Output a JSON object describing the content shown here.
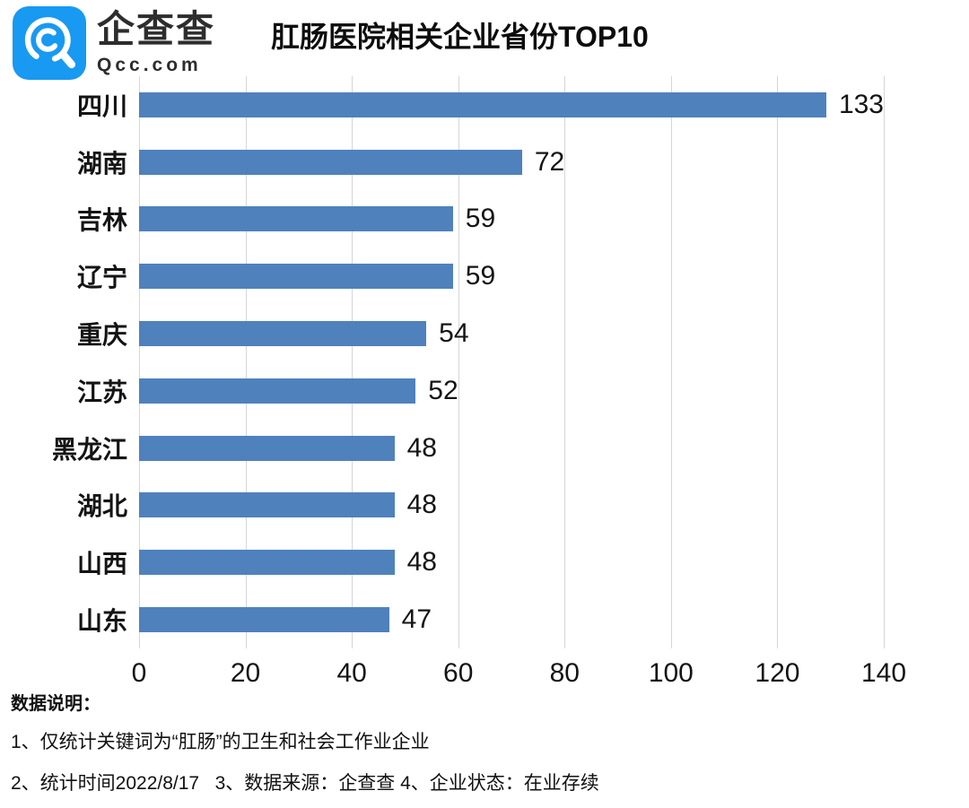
{
  "header": {
    "logo": {
      "brand_cn": "企查查",
      "brand_en": "Qcc.com",
      "icon_color": "#1899f2"
    },
    "title": "肛肠医院相关企业省份TOP10"
  },
  "chart_data": {
    "type": "bar",
    "orientation": "horizontal",
    "title": "肛肠医院相关企业省份TOP10",
    "categories": [
      "四川",
      "湖南",
      "吉林",
      "辽宁",
      "重庆",
      "江苏",
      "黑龙江",
      "湖北",
      "山西",
      "山东"
    ],
    "values": [
      133,
      72,
      59,
      59,
      54,
      52,
      48,
      48,
      48,
      47
    ],
    "xlabel": "",
    "ylabel": "",
    "xlim": [
      0,
      140
    ],
    "xticks": [
      0,
      20,
      40,
      60,
      80,
      100,
      120,
      140
    ],
    "grid": true,
    "legend": false,
    "value_labels": true,
    "bar_color": "#4f81bd",
    "grid_color": "#d6d6d6"
  },
  "footer": {
    "heading": "数据说明：",
    "notes": [
      "1、仅统计关键词为“肛肠”的卫生和社会工作业企业",
      "2、统计时间2022/8/17   3、数据来源：企查查 4、企业状态：在业存续"
    ]
  }
}
